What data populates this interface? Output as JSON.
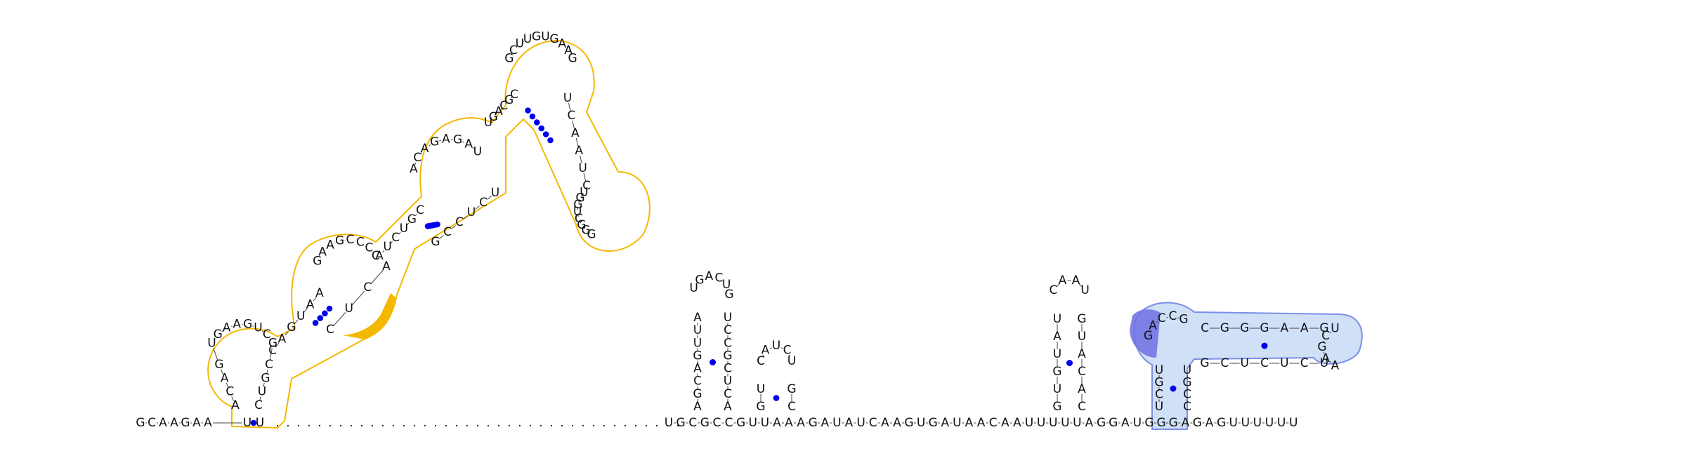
{
  "diagram": {
    "type": "rna-secondary-structure",
    "strands": [
      {
        "name": "five-prime-tail",
        "sequence": "GCAAGAA"
      },
      {
        "name": "left-bottom-loop",
        "sequence": "ACAGUGAAGUCGCGUC"
      },
      {
        "name": "left-mid-loop",
        "sequence": "CAGUAAGAAGCCCCAUCUGCACAGAGAUUGACGCGCUUGUGAAGUCAAUCUGGUCGGGUCUCCGACUC"
      },
      {
        "name": "gap",
        "sequence": "......................................."
      },
      {
        "name": "mid-run",
        "sequence": "UGCGCCGUUAAAGAUAUCAAGUGAUAACAAUUUUUAGGAUGGGAGAGUUUUUU"
      },
      {
        "name": "hairpin-1",
        "sequence": "AGCAGUUAUGACUGUCCGCUCA"
      },
      {
        "name": "hairpin-2",
        "sequence": "GUCAUCUGC"
      },
      {
        "name": "hairpin-3",
        "sequence": "GUGUAUCAAUGUACAC"
      },
      {
        "name": "right-blue-hairpin",
        "sequence": "UCGUGACCGCGGGAAGUCGAAUCUCUCGUGCC"
      }
    ],
    "highlights": [
      {
        "name": "orange-domain",
        "color": "#f5b800"
      },
      {
        "name": "blue-domain",
        "color": "#6e6ee0"
      }
    ],
    "colors": {
      "pair_dot": "#0000ee",
      "orange_outline": "#f5b800",
      "blue_outline": "#7b8fe6",
      "blue_fill": "#cfe0f7"
    }
  }
}
